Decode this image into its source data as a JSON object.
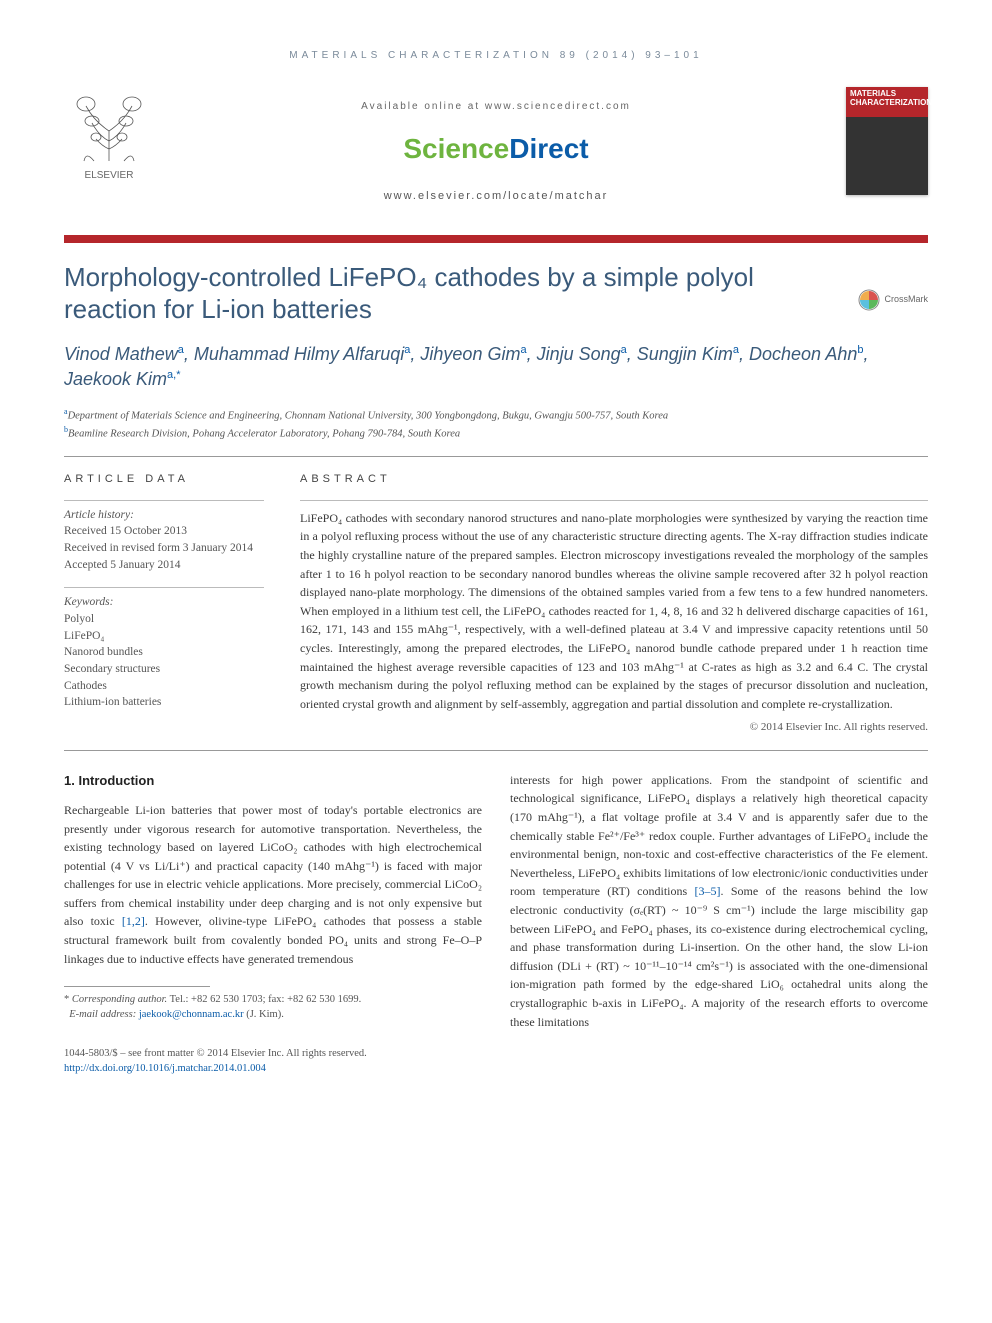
{
  "running_head": "MATERIALS CHARACTERIZATION 89 (2014) 93–101",
  "header": {
    "available_text": "Available online at www.sciencedirect.com",
    "brand_science": "Science",
    "brand_direct": "Direct",
    "journal_url": "www.elsevier.com/locate/matchar",
    "elsevier_label": "ELSEVIER",
    "cover_title": "MATERIALS CHARACTERIZATION"
  },
  "crossmark_label": "CrossMark",
  "title_html": "Morphology-controlled LiFePO₄ cathodes by a simple polyol reaction for Li-ion batteries",
  "authors": [
    {
      "name": "Vinod Mathew",
      "aff": "a"
    },
    {
      "name": "Muhammad Hilmy Alfaruqi",
      "aff": "a"
    },
    {
      "name": "Jihyeon Gim",
      "aff": "a"
    },
    {
      "name": "Jinju Song",
      "aff": "a"
    },
    {
      "name": "Sungjin Kim",
      "aff": "a"
    },
    {
      "name": "Docheon Ahn",
      "aff": "b"
    },
    {
      "name": "Jaekook Kim",
      "aff": "a",
      "corr": true
    }
  ],
  "affiliations": [
    {
      "label": "a",
      "text": "Department of Materials Science and Engineering, Chonnam National University, 300 Yongbongdong, Bukgu, Gwangju 500-757, South Korea"
    },
    {
      "label": "b",
      "text": "Beamline Research Division, Pohang Accelerator Laboratory, Pohang 790-784, South Korea"
    }
  ],
  "article_data_heading": "ARTICLE DATA",
  "abstract_heading": "ABSTRACT",
  "history_label": "Article history:",
  "history": [
    "Received 15 October 2013",
    "Received in revised form 3 January 2014",
    "Accepted 5 January 2014"
  ],
  "keywords_label": "Keywords:",
  "keywords": [
    "Polyol",
    "LiFePO₄",
    "Nanorod bundles",
    "Secondary structures",
    "Cathodes",
    "Lithium-ion batteries"
  ],
  "abstract": "LiFePO₄ cathodes with secondary nanorod structures and nano-plate morphologies were synthesized by varying the reaction time in a polyol refluxing process without the use of any characteristic structure directing agents. The X-ray diffraction studies indicate the highly crystalline nature of the prepared samples. Electron microscopy investigations revealed the morphology of the samples after 1 to 16 h polyol reaction to be secondary nanorod bundles whereas the olivine sample recovered after 32 h polyol reaction displayed nano-plate morphology. The dimensions of the obtained samples varied from a few tens to a few hundred nanometers. When employed in a lithium test cell, the LiFePO₄ cathodes reacted for 1, 4, 8, 16 and 32 h delivered discharge capacities of 161, 162, 171, 143 and 155 mAhg⁻¹, respectively, with a well-defined plateau at 3.4 V and impressive capacity retentions until 50 cycles. Interestingly, among the prepared electrodes, the LiFePO₄ nanorod bundle cathode prepared under 1 h reaction time maintained the highest average reversible capacities of 123 and 103 mAhg⁻¹ at C-rates as high as 3.2 and 6.4 C. The crystal growth mechanism during the polyol refluxing method can be explained by the stages of precursor dissolution and nucleation, oriented crystal growth and alignment by self-assembly, aggregation and partial dissolution and complete re-crystallization.",
  "copyright": "© 2014 Elsevier Inc. All rights reserved.",
  "section1_heading": "1. Introduction",
  "col1_text": "Rechargeable Li-ion batteries that power most of today's portable electronics are presently under vigorous research for automotive transportation. Nevertheless, the existing technology based on layered LiCoO₂ cathodes with high electrochemical potential (4 V vs Li/Li⁺) and practical capacity (140 mAhg⁻¹) is faced with major challenges for use in electric vehicle applications. More precisely, commercial LiCoO₂ suffers from chemical instability under deep charging and is not only expensive but also toxic ",
  "col1_ref": "[1,2]",
  "col1_text2": ". However, olivine-type LiFePO₄ cathodes that possess a stable structural framework built from covalently bonded PO₄ units and strong Fe–O–P linkages due to inductive effects have generated tremendous",
  "col2_text": "interests for high power applications. From the standpoint of scientific and technological significance, LiFePO₄ displays a relatively high theoretical capacity (170 mAhg⁻¹), a flat voltage profile at 3.4 V and is apparently safer due to the chemically stable Fe²⁺/Fe³⁺ redox couple. Further advantages of LiFePO₄ include the environmental benign, non-toxic and cost-effective characteristics of the Fe element. Nevertheless, LiFePO₄ exhibits limitations of low electronic/ionic conductivities under room temperature (RT) conditions ",
  "col2_ref": "[3–5]",
  "col2_text2": ". Some of the reasons behind the low electronic conductivity (σₑ(RT) ~ 10⁻⁹ S cm⁻¹) include the large miscibility gap between LiFePO₄ and FePO₄ phases, its co-existence during electrochemical cycling, and phase transformation during Li-insertion. On the other hand, the slow Li-ion diffusion (DLi + (RT) ~ 10⁻¹¹–10⁻¹⁴ cm²s⁻¹) is associated with the one-dimensional ion-migration path formed by the edge-shared LiO₆ octahedral units along the crystallographic b-axis in LiFePO₄. A majority of the research efforts to overcome these limitations",
  "footnote": {
    "mark": "*",
    "label": "Corresponding author.",
    "tel": "Tel.: +82 62 530 1703; fax: +82 62 530 1699.",
    "email_label": "E-mail address:",
    "email": "jaekook@chonnam.ac.kr",
    "email_who": "(J. Kim)."
  },
  "footer": {
    "line1": "1044-5803/$ – see front matter © 2014 Elsevier Inc. All rights reserved.",
    "doi": "http://dx.doi.org/10.1016/j.matchar.2014.01.004"
  },
  "colors": {
    "brand_red": "#b5262b",
    "title_blue": "#3a5a7a",
    "link_blue": "#0b5ca8",
    "sd_green": "#6eb43f"
  }
}
